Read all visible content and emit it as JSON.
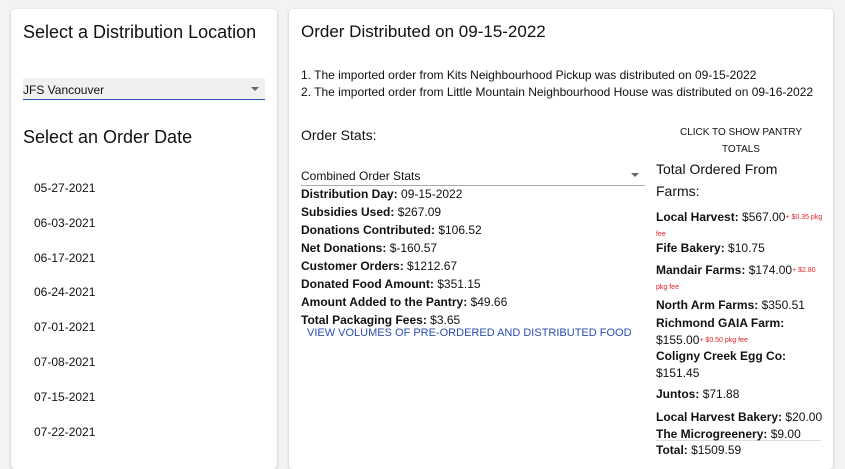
{
  "left": {
    "location_title": "Select a Distribution Location",
    "location_value": "JFS Vancouver",
    "date_title": "Select an Order Date",
    "dates": [
      "05-27-2021",
      "06-03-2021",
      "06-17-2021",
      "06-24-2021",
      "07-01-2021",
      "07-08-2021",
      "07-15-2021",
      "07-22-2021"
    ]
  },
  "right": {
    "title": "Order Distributed on 09-15-2022",
    "messages": [
      "1. The imported order from Kits Neighbourhood Pickup was distributed on 09-15-2022",
      "2. The imported order from Little Mountain Neighbourhood House was distributed on 09-16-2022"
    ],
    "stats_title": "Order Stats:",
    "stats_select": "Combined Order Stats",
    "stats": [
      {
        "label": "Distribution Day:",
        "value": "09-15-2022"
      },
      {
        "label": "Subsidies Used:",
        "value": "$267.09"
      },
      {
        "label": "Donations Contributed:",
        "value": "$106.52"
      },
      {
        "label": "Net Donations:",
        "value": "$-160.57"
      },
      {
        "label": "Customer Orders:",
        "value": "$1212.67"
      },
      {
        "label": "Donated Food Amount:",
        "value": "$351.15"
      },
      {
        "label": "Amount Added to the Pantry:",
        "value": "$49.66"
      },
      {
        "label": "Total Packaging Fees:",
        "value": "$3.65"
      }
    ],
    "volumes_link": "VIEW VOLUMES OF PRE-ORDERED AND DISTRIBUTED FOOD",
    "pantry_button": "CLICK TO SHOW PANTRY TOTALS",
    "farms_title": "Total Ordered From Farms:",
    "farms": [
      {
        "name": "Local Harvest:",
        "value": "$567.00",
        "fee": "+ $0.35 pkg fee"
      },
      {
        "name": "Fife Bakery:",
        "value": "$10.75",
        "fee": ""
      },
      {
        "name": "Mandair Farms:",
        "value": "$174.00",
        "fee": "+ $2.80 pkg fee"
      },
      {
        "name": "North Arm Farms:",
        "value": "$350.51",
        "fee": ""
      },
      {
        "name": "Richmond GAIA Farm:",
        "value": "$155.00",
        "fee": "+ $0.50 pkg fee"
      },
      {
        "name": "Coligny Creek Egg Co:",
        "value": "$151.45",
        "fee": ""
      },
      {
        "name": "Juntos:",
        "value": "$71.88",
        "fee": ""
      },
      {
        "name": "Local Harvest Bakery:",
        "value": "$20.00",
        "fee": ""
      },
      {
        "name": "The Microgreenery:",
        "value": "$9.00",
        "fee": ""
      }
    ],
    "total_label": "Total:",
    "total_value": "$1509.59"
  }
}
